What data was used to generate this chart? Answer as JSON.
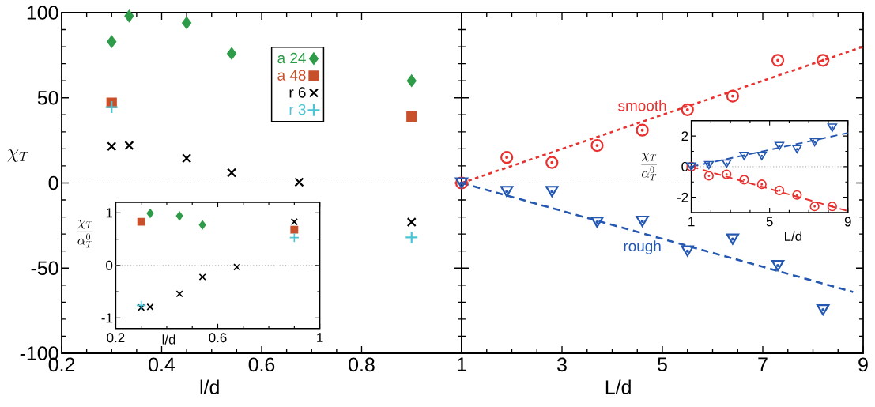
{
  "chart_data": [
    {
      "type": "scatter",
      "xlabel": "l/d",
      "ylabel": "\\chi_T",
      "xlim": [
        0.2,
        1
      ],
      "ylim": [
        -100,
        100
      ],
      "xticks": [
        0.2,
        0.4,
        0.6,
        0.8
      ],
      "yticks": [
        -100,
        -50,
        0,
        50,
        100
      ],
      "legend": "top",
      "x": [
        0.3,
        0.335,
        0.45,
        0.54,
        0.675,
        0.9
      ],
      "ref_lines": [
        {
          "axis": "y",
          "value": 0,
          "color": "#999999",
          "line_style": "dotted"
        }
      ],
      "series": [
        {
          "name": "a 24",
          "color": "#2e9b48",
          "marker": "diamond",
          "values": [
            83,
            98,
            94,
            76,
            null,
            60
          ]
        },
        {
          "name": "a 48",
          "color": "#c8502a",
          "marker": "square",
          "values": [
            47,
            null,
            null,
            null,
            null,
            39
          ]
        },
        {
          "name": "r 6",
          "color": "#000000",
          "marker": "cross",
          "values": [
            21.5,
            22,
            14.5,
            6,
            0.5,
            -23
          ]
        },
        {
          "name": "r 3",
          "color": "#4cc4d4",
          "marker": "plus",
          "values": [
            44.5,
            null,
            null,
            null,
            null,
            -32
          ]
        }
      ]
    },
    {
      "type": "scatter",
      "xlabel": "L/d",
      "xlim": [
        1,
        9
      ],
      "ylim": [
        -100,
        100
      ],
      "xticks": [
        1,
        3,
        5,
        7,
        9
      ],
      "yticks": [
        -100,
        -50,
        0,
        50,
        100
      ],
      "tick_labels": "x",
      "x": [
        1,
        1.9,
        2.8,
        3.7,
        4.6,
        5.5,
        6.4,
        7.3,
        8.2
      ],
      "ref_lines": [
        {
          "axis": "y",
          "value": 0,
          "color": "#999999",
          "line_style": "dotted"
        }
      ],
      "series": [
        {
          "type": "line",
          "color": "#e8302e",
          "line_style": "dotted",
          "x": [
            1,
            9
          ],
          "values": [
            0,
            80
          ]
        },
        {
          "type": "line",
          "color": "#2457b0",
          "line_style": "dashed",
          "x": [
            1,
            8.8
          ],
          "values": [
            0,
            -64
          ]
        },
        {
          "name": "smooth",
          "color": "#e8302e",
          "marker": "circle",
          "values": [
            0,
            15,
            12,
            22,
            31,
            43,
            51,
            72,
            72
          ]
        },
        {
          "name": "rough",
          "color": "#2457b0",
          "marker": "triangle",
          "values": [
            0,
            -5,
            -5,
            -23,
            -22.5,
            -40,
            -33,
            -48.5,
            -74.5
          ]
        }
      ]
    },
    {
      "type": "scatter",
      "xlabel": "l/d",
      "ylabel": "\\frac{\\chi_T}{\\alpha_T^0}",
      "xlim": [
        0.2,
        1
      ],
      "ylim": [
        -1.2,
        1.2
      ],
      "xticks": [
        0.2,
        0.6,
        1
      ],
      "yticks": [
        -1,
        0,
        1
      ],
      "x": [
        0.3,
        0.335,
        0.45,
        0.54,
        0.675,
        0.9
      ],
      "ref_lines": [
        {
          "axis": "y",
          "value": 0,
          "color": "#999999",
          "line_style": "dotted"
        }
      ],
      "series": [
        {
          "color": "#2e9b48",
          "marker": "diamond",
          "values": [
            null,
            0.99,
            0.94,
            0.77,
            null,
            null
          ]
        },
        {
          "color": "#c8502a",
          "marker": "square",
          "values": [
            0.83,
            null,
            null,
            null,
            null,
            0.68
          ]
        },
        {
          "color": "#000000",
          "marker": "cross",
          "values": [
            -0.8,
            -0.79,
            -0.54,
            -0.22,
            -0.03,
            0.83
          ]
        },
        {
          "color": "#4cc4d4",
          "marker": "plus",
          "values": [
            -0.76,
            null,
            null,
            null,
            null,
            0.53
          ]
        }
      ]
    },
    {
      "type": "scatter",
      "xlabel": "L/d",
      "ylabel": "\\frac{\\chi_T}{\\alpha_T^0}",
      "xlim": [
        1,
        9
      ],
      "ylim": [
        -3,
        3
      ],
      "xticks": [
        1,
        5,
        9
      ],
      "yticks": [
        -2,
        0,
        2
      ],
      "x": [
        1,
        1.9,
        2.8,
        3.7,
        4.6,
        5.5,
        6.4,
        7.3,
        8.2
      ],
      "ref_lines": [
        {
          "axis": "y",
          "value": 0,
          "color": "#999999",
          "line_style": "dotted"
        }
      ],
      "series": [
        {
          "type": "line",
          "color": "#e8302e",
          "line_style": "dashed",
          "x": [
            1,
            9
          ],
          "values": [
            0,
            -2.9
          ]
        },
        {
          "type": "line",
          "color": "#2457b0",
          "line_style": "dashed",
          "x": [
            1,
            9
          ],
          "values": [
            0,
            2.2
          ]
        },
        {
          "color": "#e8302e",
          "marker": "circle",
          "values": [
            0,
            -0.6,
            -0.5,
            -0.85,
            -1.15,
            -1.55,
            -1.85,
            -2.6,
            -2.6
          ]
        },
        {
          "color": "#2457b0",
          "marker": "triangle",
          "values": [
            0,
            0.1,
            0.2,
            0.7,
            0.7,
            1.35,
            1.15,
            1.6,
            2.55
          ]
        }
      ]
    }
  ]
}
